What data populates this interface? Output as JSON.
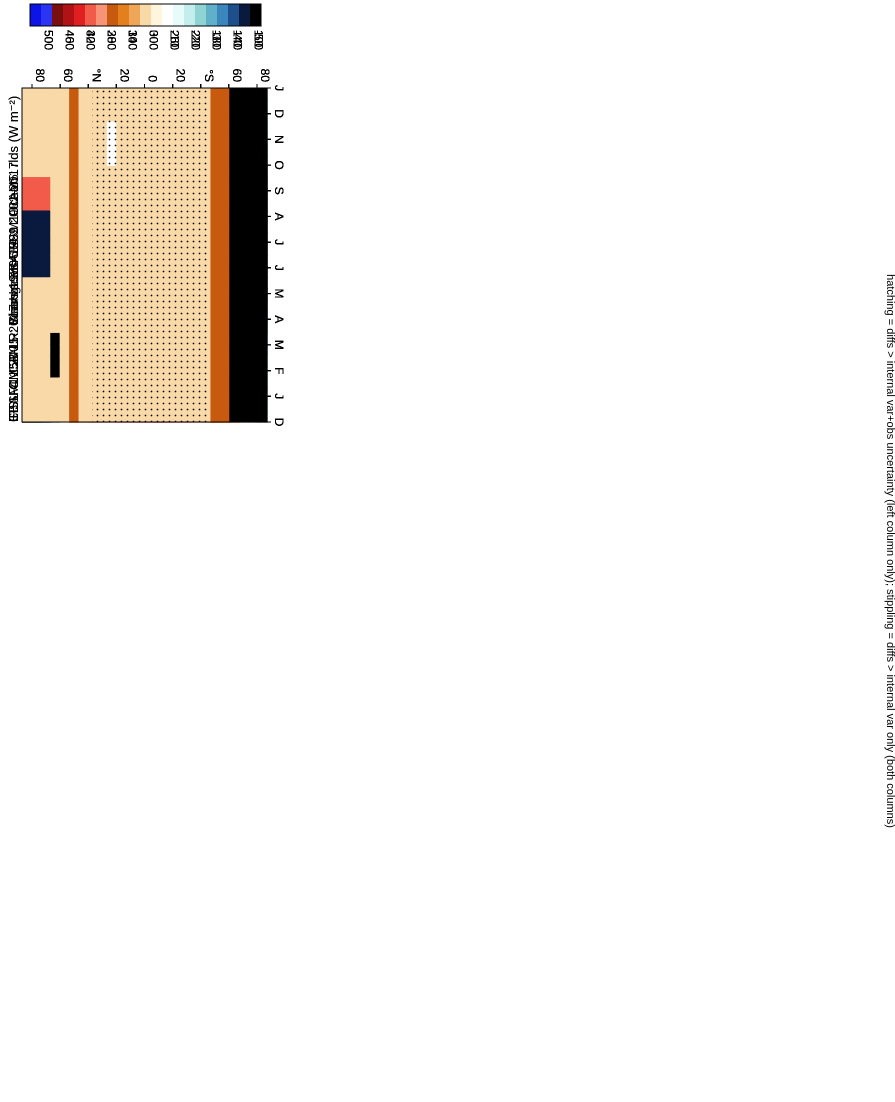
{
  "chart_data": {
    "type": "heatmap",
    "orientation": "rotated 90 degrees clockwise",
    "footnote": "hatching = diffs > internal var+obs uncertainty (left column only); stippling = diffs > internal var only (both columns)",
    "month_ticks": [
      "J",
      "F",
      "M",
      "A",
      "M",
      "J",
      "J",
      "A",
      "S",
      "O",
      "N",
      "D",
      "J"
    ],
    "month_ticks_start": "D",
    "lat_ticks": [
      "80",
      "60",
      "°N",
      "20",
      "0",
      "20",
      "°S",
      "60",
      "80"
    ],
    "lat_range": [
      -90,
      90
    ],
    "colorbars": {
      "absolute": {
        "labels": [
          "500",
          "460",
          "420",
          "380",
          "340",
          "300",
          "260",
          "220",
          "180",
          "140",
          "100"
        ],
        "colors": [
          "#0d14e6",
          "#2a34f2",
          "#7a0d0d",
          "#b01216",
          "#e02020",
          "#f25a4a",
          "#f79478",
          "#c85a10",
          "#e47f1e",
          "#f0a658",
          "#f9d9a8",
          "#fff4dc",
          "#ffffff",
          "#e8fbfb",
          "#c4eeee",
          "#8fd3d3",
          "#5fb0c8",
          "#3c86be",
          "#1f4e8c",
          "#0a1a3e",
          "#000000"
        ]
      },
      "difference": {
        "labels": [
          "50",
          "40",
          "30",
          "20",
          "10",
          "0",
          "-10",
          "-20",
          "-30",
          "-40",
          "-50"
        ],
        "colors": [
          "#0d14e6",
          "#2a34f2",
          "#7a0d0d",
          "#b01216",
          "#e02020",
          "#f25a4a",
          "#f79478",
          "#c85a10",
          "#e47f1e",
          "#f0a658",
          "#f9d9a8",
          "#fff4dc",
          "#ffffff",
          "#e8fbfb",
          "#c4eeee",
          "#8fd3d3",
          "#5fb0c8",
          "#3c86be",
          "#1f4e8c",
          "#0a1a3e",
          "#000000"
        ]
      }
    },
    "panels": [
      {
        "id": "p1",
        "title": "IPSL-CM5B-LR: Years 1980-1999 : Ocean : rlds (W m⁻²)",
        "kind": "absolute",
        "colorbar": "absolute",
        "hatching": true,
        "stippling": "dense"
      },
      {
        "id": "p2",
        "title": "EBAF4.1 2001-2017 Uncer=5%",
        "kind": "absolute",
        "colorbar": "absolute",
        "hatching": true,
        "stippling": "dense"
      },
      {
        "id": "p3",
        "title": "IPSL-CM5B-LR: Bias vs EBAF4.1 2001-2017",
        "kind": "bias",
        "colorbar": "difference",
        "hatching": true,
        "stippling": "dense"
      },
      {
        "id": "p4",
        "title": "IPSL-CM5B-LR: Years 1980-1999 : Ocean : rlds (W m⁻²)",
        "kind": "absolute",
        "colorbar": "absolute",
        "hatching": false,
        "stippling": "dense"
      },
      {
        "id": "p5",
        "title": "CESM1-CAM5",
        "kind": "absolute",
        "colorbar": "absolute",
        "hatching": false,
        "stippling": "dense"
      },
      {
        "id": "p6",
        "title": "IPSL-CM5B-LR: Change vs CESM1-CAM5",
        "kind": "change",
        "colorbar": "difference",
        "hatching": false,
        "stippling": "sparse"
      }
    ]
  }
}
